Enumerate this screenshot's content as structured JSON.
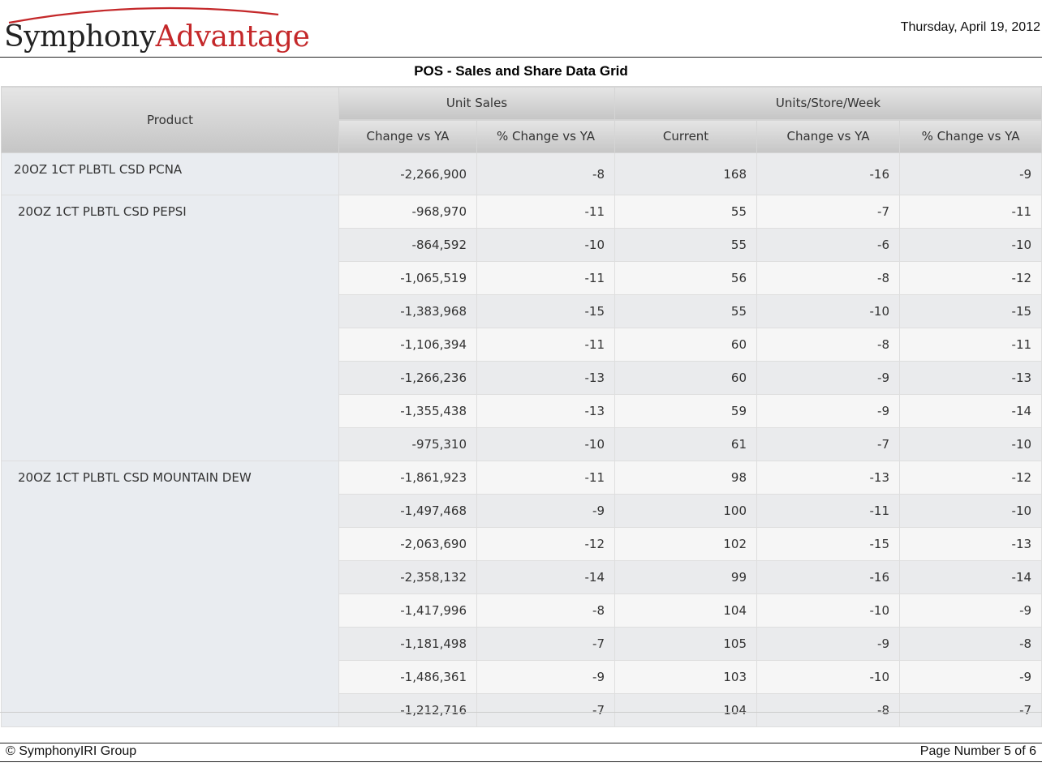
{
  "header": {
    "logo_part1": "Symphony",
    "logo_part2": "Advantage",
    "date": "Thursday, April 19, 2012"
  },
  "report_title": "POS - Sales and Share Data Grid",
  "table": {
    "product_header": "Product",
    "group_unit_sales": "Unit Sales",
    "group_units_store_week": "Units/Store/Week",
    "columns": [
      "Change vs YA",
      "% Change vs YA",
      "Current",
      "Change vs YA",
      "% Change vs YA"
    ],
    "groups": [
      {
        "product": "20OZ 1CT PLBTL CSD PCNA",
        "rows": [
          [
            "-2,266,900",
            "-8",
            "168",
            "-16",
            "-9"
          ]
        ]
      },
      {
        "product": "20OZ 1CT PLBTL CSD PEPSI",
        "rows": [
          [
            "-968,970",
            "-11",
            "55",
            "-7",
            "-11"
          ],
          [
            "-864,592",
            "-10",
            "55",
            "-6",
            "-10"
          ],
          [
            "-1,065,519",
            "-11",
            "56",
            "-8",
            "-12"
          ],
          [
            "-1,383,968",
            "-15",
            "55",
            "-10",
            "-15"
          ],
          [
            "-1,106,394",
            "-11",
            "60",
            "-8",
            "-11"
          ],
          [
            "-1,266,236",
            "-13",
            "60",
            "-9",
            "-13"
          ],
          [
            "-1,355,438",
            "-13",
            "59",
            "-9",
            "-14"
          ],
          [
            "-975,310",
            "-10",
            "61",
            "-7",
            "-10"
          ]
        ]
      },
      {
        "product": "20OZ 1CT PLBTL CSD MOUNTAIN DEW",
        "rows": [
          [
            "-1,861,923",
            "-11",
            "98",
            "-13",
            "-12"
          ],
          [
            "-1,497,468",
            "-9",
            "100",
            "-11",
            "-10"
          ],
          [
            "-2,063,690",
            "-12",
            "102",
            "-15",
            "-13"
          ],
          [
            "-2,358,132",
            "-14",
            "99",
            "-16",
            "-14"
          ],
          [
            "-1,417,996",
            "-8",
            "104",
            "-10",
            "-9"
          ],
          [
            "-1,181,498",
            "-7",
            "105",
            "-9",
            "-8"
          ],
          [
            "-1,486,361",
            "-9",
            "103",
            "-10",
            "-9"
          ],
          [
            "-1,212,716",
            "-7",
            "104",
            "-8",
            "-7"
          ]
        ]
      }
    ]
  },
  "footer": {
    "copyright": "© SymphonyIRI Group",
    "page": "Page Number 5 of 6"
  },
  "colors": {
    "logo_accent": "#c4282a",
    "header_gradient_top": "#e5e5e5",
    "header_gradient_bottom": "#c5c5c5",
    "product_column_bg": "#e9ecf0"
  }
}
